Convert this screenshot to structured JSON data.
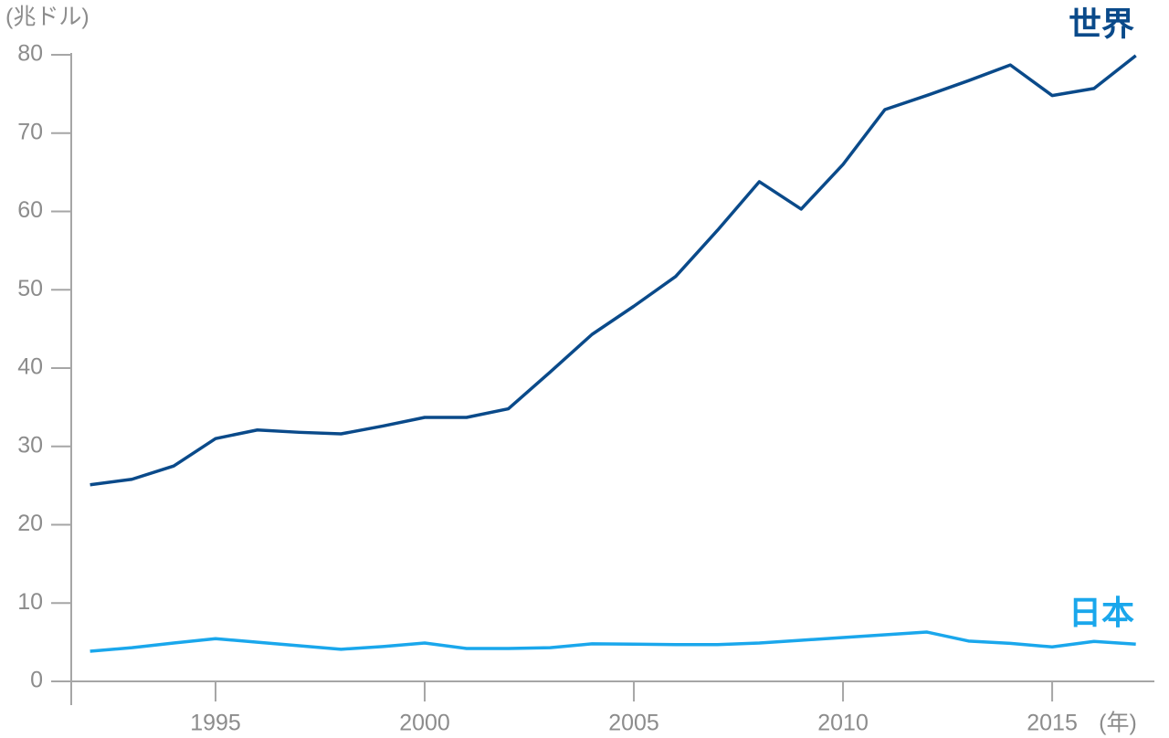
{
  "chart_data": {
    "type": "line",
    "y_label": "(兆ドル)",
    "x_label": "(年)",
    "x": [
      1992,
      1993,
      1994,
      1995,
      1996,
      1997,
      1998,
      1999,
      2000,
      2001,
      2002,
      2003,
      2004,
      2005,
      2006,
      2007,
      2008,
      2009,
      2010,
      2011,
      2012,
      2013,
      2014,
      2015,
      2016,
      2017
    ],
    "series": [
      {
        "name": "世界",
        "color": "#0a4a8a",
        "values": [
          25.1,
          25.8,
          27.5,
          31.0,
          32.1,
          31.8,
          31.6,
          32.6,
          33.7,
          33.7,
          34.8,
          39.5,
          44.3,
          47.9,
          51.7,
          57.6,
          63.8,
          60.3,
          66.0,
          73.0,
          74.8,
          76.7,
          78.7,
          74.8,
          75.7,
          79.9
        ]
      },
      {
        "name": "日本",
        "color": "#1aa7ec",
        "values": [
          3.85,
          4.3,
          4.9,
          5.45,
          5.0,
          4.55,
          4.1,
          4.45,
          4.9,
          4.2,
          4.2,
          4.3,
          4.8,
          4.75,
          4.7,
          4.7,
          4.9,
          5.25,
          5.6,
          5.95,
          6.3,
          5.15,
          4.85,
          4.4,
          5.1,
          4.75
        ]
      }
    ],
    "xlim": [
      1991.55,
      2017.4
    ],
    "xticks": [
      1995,
      2000,
      2005,
      2010,
      2015
    ],
    "ylim": [
      0,
      80
    ],
    "yticks": [
      0,
      10,
      20,
      30,
      40,
      50,
      60,
      70,
      80
    ]
  }
}
